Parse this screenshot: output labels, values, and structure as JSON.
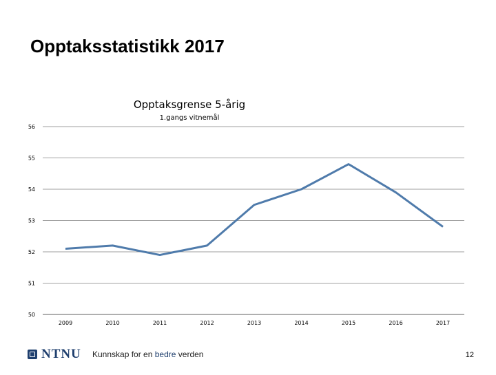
{
  "slide": {
    "title": "Opptaksstatistikk 2017",
    "page_number": "12"
  },
  "footer": {
    "logo_text": "NTNU",
    "tagline_before": "Kunnskap for en ",
    "tagline_accent": "bedre",
    "tagline_after": " verden"
  },
  "colors": {
    "series_line": "#4f7bab",
    "gridline": "#7f7f7f",
    "brand": "#1f3f6e"
  },
  "chart_data": {
    "type": "line",
    "title": "Opptaksgrense 5-årig",
    "subtitle": "1.gangs vitnemål",
    "xlabel": "",
    "ylabel": "",
    "categories": [
      "2009",
      "2010",
      "2011",
      "2012",
      "2013",
      "2014",
      "2015",
      "2016",
      "2017"
    ],
    "series": [
      {
        "values": [
          52.1,
          52.2,
          51.9,
          52.2,
          53.5,
          54.0,
          54.8,
          53.9,
          52.8
        ]
      }
    ],
    "ylim": [
      50,
      56
    ],
    "yticks": [
      "50",
      "51",
      "52",
      "53",
      "54",
      "55",
      "56"
    ],
    "grid": true,
    "legend": "none"
  }
}
